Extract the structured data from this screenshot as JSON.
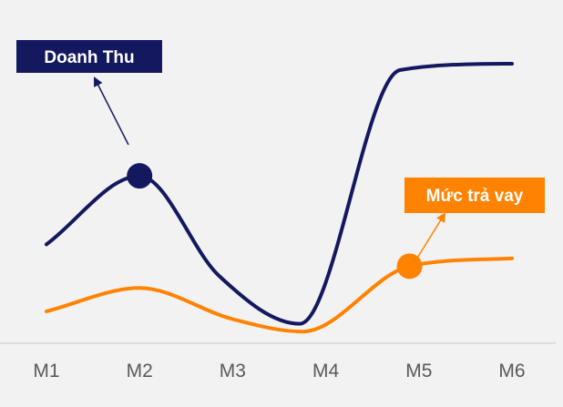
{
  "chart_data": {
    "type": "line",
    "categories": [
      "M1",
      "M2",
      "M3",
      "M4",
      "M5",
      "M6"
    ],
    "axes_values_printed": false,
    "grid": false,
    "series": [
      {
        "name": "Doanh Thu",
        "color": "#14185f",
        "curve_x": [
          1.0,
          2.0,
          2.85,
          3.72,
          4.8,
          6.0
        ],
        "curve_y": [
          3.0,
          5.2,
          2.0,
          0.45,
          8.6,
          8.8
        ],
        "highlight_x": 2.0,
        "highlight_y": 5.2
      },
      {
        "name": "Mức trả vay",
        "color": "#ff8200",
        "curve_x": [
          1.0,
          2.0,
          3.0,
          3.75,
          4.9,
          6.0
        ],
        "curve_y": [
          0.85,
          1.6,
          0.6,
          0.2,
          2.3,
          2.55
        ],
        "highlight_x": 4.9,
        "highlight_y": 2.3
      }
    ]
  }
}
